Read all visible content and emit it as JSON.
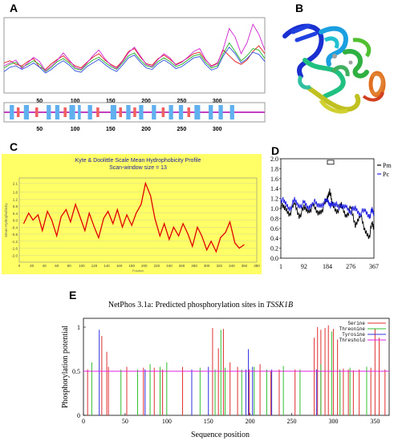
{
  "panels": {
    "A": {
      "label": "A"
    },
    "B": {
      "label": "B"
    },
    "C": {
      "label": "C"
    },
    "D": {
      "label": "D"
    },
    "E": {
      "label": "E"
    }
  },
  "colors": {
    "a_red": "#e02020",
    "a_green": "#20b020",
    "a_blue": "#3050e0",
    "a_magenta": "#d020d0",
    "c_bg": "#ffff66",
    "c_line": "#e00000",
    "d_pm": "#000000",
    "d_pc": "#2020e0",
    "e_serine": "#e03030",
    "e_threonine": "#30c030",
    "e_tyrosine": "#3030e0",
    "e_threshold": "#e020e0"
  },
  "chart_data": [
    {
      "panel": "A",
      "type": "line",
      "xlim": [
        0,
        367
      ],
      "xticks": [
        50,
        100,
        150,
        200,
        250,
        300
      ],
      "series_colors": [
        "#e02020",
        "#20b020",
        "#3050e0",
        "#d020d0"
      ],
      "series_values": [
        [
          0.42,
          0.45,
          0.4,
          0.38,
          0.44,
          0.48,
          0.36,
          0.33,
          0.41,
          0.47,
          0.52,
          0.44,
          0.38,
          0.35,
          0.43,
          0.5,
          0.55,
          0.46,
          0.4,
          0.36,
          0.45,
          0.58,
          0.62,
          0.5,
          0.41,
          0.39,
          0.48,
          0.53,
          0.47,
          0.4,
          0.44,
          0.49,
          0.55,
          0.57,
          0.46,
          0.38,
          0.42,
          0.6,
          0.52,
          0.44,
          0.4,
          0.46,
          0.58,
          0.66,
          0.55
        ],
        [
          0.35,
          0.4,
          0.43,
          0.36,
          0.4,
          0.45,
          0.4,
          0.3,
          0.36,
          0.44,
          0.48,
          0.42,
          0.34,
          0.32,
          0.4,
          0.46,
          0.5,
          0.43,
          0.37,
          0.33,
          0.42,
          0.52,
          0.56,
          0.46,
          0.38,
          0.36,
          0.44,
          0.49,
          0.44,
          0.37,
          0.4,
          0.46,
          0.52,
          0.54,
          0.43,
          0.35,
          0.38,
          0.55,
          0.7,
          0.58,
          0.45,
          0.52,
          0.62,
          0.6,
          0.48
        ],
        [
          0.3,
          0.36,
          0.38,
          0.33,
          0.37,
          0.42,
          0.36,
          0.28,
          0.33,
          0.4,
          0.45,
          0.39,
          0.31,
          0.29,
          0.37,
          0.42,
          0.47,
          0.4,
          0.34,
          0.3,
          0.39,
          0.49,
          0.53,
          0.43,
          0.35,
          0.33,
          0.41,
          0.46,
          0.41,
          0.34,
          0.37,
          0.43,
          0.49,
          0.51,
          0.4,
          0.32,
          0.35,
          0.52,
          0.64,
          0.55,
          0.42,
          0.48,
          0.57,
          0.54,
          0.44
        ],
        [
          0.38,
          0.42,
          0.46,
          0.34,
          0.42,
          0.5,
          0.44,
          0.31,
          0.38,
          0.46,
          0.56,
          0.46,
          0.36,
          0.33,
          0.42,
          0.52,
          0.6,
          0.48,
          0.39,
          0.34,
          0.44,
          0.56,
          0.64,
          0.52,
          0.4,
          0.37,
          0.47,
          0.55,
          0.49,
          0.39,
          0.43,
          0.5,
          0.58,
          0.62,
          0.47,
          0.37,
          0.41,
          0.62,
          0.9,
          0.78,
          0.55,
          0.7,
          0.96,
          0.82,
          0.6
        ]
      ]
    },
    {
      "panel": "C",
      "type": "line",
      "title": "Kyte & Doolittle Scale Mean Hydrophobicity Profile",
      "subtitle": "Scan-window size = 13",
      "xlabel": "Position",
      "ylabel": "Mean Hydrophobicity",
      "xlim": [
        0,
        380
      ],
      "ylim": [
        -2.4,
        2.4
      ],
      "xticks": [
        0,
        20,
        40,
        60,
        80,
        100,
        120,
        140,
        160,
        180,
        200,
        220,
        240,
        260,
        280,
        300,
        320,
        340,
        360,
        380
      ],
      "yticks": [
        -2.0,
        -1.6,
        -1.2,
        -0.8,
        -0.4,
        0.0,
        0.4,
        0.8,
        1.2,
        1.6,
        2.1
      ],
      "x": [
        7,
        15,
        22,
        30,
        37,
        45,
        52,
        60,
        67,
        75,
        82,
        90,
        97,
        105,
        112,
        120,
        127,
        135,
        142,
        150,
        157,
        165,
        172,
        180,
        187,
        195,
        202,
        210,
        217,
        225,
        232,
        240,
        247,
        255,
        262,
        270,
        277,
        285,
        292,
        300,
        307,
        315,
        322,
        330,
        337,
        345,
        352,
        360
      ],
      "values": [
        -0.2,
        0.4,
        0.0,
        0.3,
        -0.6,
        0.5,
        0.0,
        -0.9,
        0.2,
        0.6,
        -0.1,
        0.9,
        0.2,
        -0.6,
        0.4,
        -0.4,
        -1.0,
        0.1,
        0.5,
        -0.2,
        0.6,
        -0.4,
        0.3,
        -0.3,
        0.4,
        0.9,
        2.1,
        1.4,
        0.1,
        -0.9,
        -0.2,
        -1.1,
        -0.4,
        -0.9,
        -0.2,
        -0.8,
        -1.5,
        -0.4,
        -0.9,
        -1.7,
        -1.2,
        -1.8,
        -1.0,
        -0.7,
        -0.1,
        -1.3,
        -1.6,
        -1.4
      ]
    },
    {
      "panel": "D",
      "type": "line",
      "xlim": [
        1,
        367
      ],
      "ylim": [
        0.0,
        2.0
      ],
      "xticks": [
        1,
        92,
        184,
        276,
        367
      ],
      "yticks": [
        0.0,
        0.2,
        0.4,
        0.6,
        0.8,
        1.0,
        1.2,
        1.4,
        1.6,
        1.8,
        2.0
      ],
      "series": [
        {
          "name": "Pm",
          "color": "#000000",
          "x": [
            1,
            18,
            36,
            55,
            73,
            92,
            110,
            128,
            147,
            165,
            184,
            193,
            202,
            220,
            239,
            257,
            276,
            294,
            312,
            331,
            349,
            360,
            367
          ],
          "values": [
            1.05,
            1.0,
            0.9,
            1.1,
            0.85,
            1.0,
            0.95,
            1.05,
            0.9,
            1.0,
            1.2,
            1.38,
            1.1,
            0.95,
            1.05,
            0.85,
            1.0,
            0.65,
            0.9,
            0.55,
            0.45,
            0.7,
            0.6
          ]
        },
        {
          "name": "Pc",
          "color": "#2020e0",
          "x": [
            1,
            18,
            36,
            55,
            73,
            92,
            110,
            128,
            147,
            165,
            184,
            193,
            202,
            220,
            239,
            257,
            276,
            294,
            312,
            331,
            349,
            360,
            367
          ],
          "values": [
            1.2,
            1.1,
            1.0,
            1.15,
            1.05,
            1.1,
            1.0,
            1.15,
            1.05,
            1.1,
            1.15,
            1.1,
            1.05,
            1.1,
            1.0,
            1.05,
            0.95,
            1.0,
            0.9,
            0.95,
            0.85,
            0.95,
            0.9
          ]
        }
      ]
    },
    {
      "panel": "E",
      "type": "bar",
      "title": "NetPhos 3.1a: Predicted phosphorylation sites in ",
      "title_italic": "TSSK1B",
      "xlabel": "Sequence position",
      "ylabel": "Phosphorylation potential",
      "xlim": [
        0,
        367
      ],
      "ylim": [
        0,
        1.1
      ],
      "xticks": [
        0,
        50,
        100,
        150,
        200,
        250,
        300,
        350
      ],
      "yticks": [
        0,
        0.5,
        1
      ],
      "threshold": 0.5,
      "legend": [
        "Serine",
        "Threonine",
        "Tyrosine",
        "Threshold"
      ],
      "legend_position": "top-right",
      "serine": {
        "x": [
          5,
          22,
          28,
          30,
          52,
          72,
          85,
          95,
          119,
          155,
          162,
          168,
          176,
          185,
          199,
          212,
          225,
          235,
          254,
          277,
          281,
          285,
          290,
          294,
          300,
          305,
          312,
          318,
          324,
          331,
          345,
          350,
          355,
          362
        ],
        "values": [
          0.52,
          0.9,
          0.72,
          0.55,
          0.55,
          0.54,
          0.54,
          0.52,
          0.55,
          0.99,
          0.76,
          0.98,
          0.6,
          0.55,
          0.52,
          0.58,
          0.5,
          0.52,
          0.52,
          0.88,
          1.0,
          0.97,
          0.99,
          1.02,
          0.98,
          0.86,
          0.53,
          0.52,
          0.51,
          0.52,
          0.54,
          0.98,
          0.88,
          0.52
        ]
      },
      "threonine": {
        "x": [
          10,
          45,
          65,
          80,
          92,
          100,
          140,
          158,
          165,
          170,
          190,
          205,
          220,
          240,
          260,
          285,
          298,
          308,
          320,
          340
        ],
        "values": [
          0.6,
          0.52,
          0.52,
          0.58,
          0.55,
          0.6,
          0.54,
          0.52,
          0.97,
          0.54,
          0.52,
          0.55,
          0.52,
          0.56,
          0.52,
          0.58,
          0.95,
          0.52,
          0.54,
          0.55
        ]
      },
      "tyrosine": {
        "x": [
          19,
          74,
          130,
          150,
          195,
          198,
          203,
          226,
          280
        ],
        "values": [
          0.97,
          0.52,
          0.52,
          0.55,
          0.52,
          0.75,
          0.55,
          0.52,
          0.52
        ]
      }
    }
  ]
}
